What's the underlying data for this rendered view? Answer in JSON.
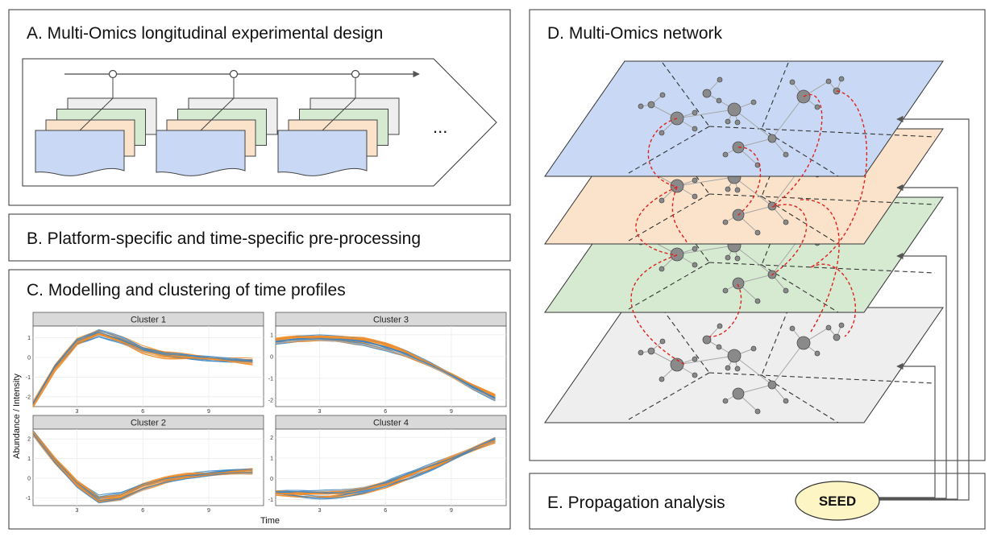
{
  "panels": {
    "a": {
      "title": "A. Multi-Omics longitudinal experimental design",
      "ellipsis": "..."
    },
    "b": {
      "title": "B. Platform-specific and time-specific pre-processing"
    },
    "c": {
      "title": "C. Modelling and clustering of time profiles"
    },
    "d": {
      "title": "D. Multi-Omics network"
    },
    "e": {
      "title": "E. Propagation analysis",
      "seed_label": "SEED"
    }
  },
  "chart_data": {
    "type": "line",
    "xlabel": "Time",
    "ylabel": "Abundance / Intensity",
    "x_ticks": [
      3,
      6,
      9
    ],
    "xlim": [
      1,
      11.5
    ],
    "series_colors": {
      "orange": "#f28e2b",
      "blue": "#3a85c4",
      "grey": "#b5b5b5"
    },
    "facets": [
      {
        "name": "Cluster 1",
        "ylim": [
          -2.5,
          1.6
        ],
        "y_ticks": [
          -2,
          -1,
          0,
          1
        ],
        "profile_x": [
          1,
          2,
          3,
          4,
          5,
          6,
          7,
          8,
          9,
          10,
          11
        ],
        "profile_y": [
          -2.4,
          -0.5,
          0.8,
          1.25,
          0.9,
          0.4,
          0.15,
          0.05,
          -0.05,
          -0.15,
          -0.2
        ]
      },
      {
        "name": "Cluster 3",
        "ylim": [
          -2.3,
          1.4
        ],
        "y_ticks": [
          -2,
          -1,
          0,
          1
        ],
        "profile_x": [
          1,
          2,
          3,
          4,
          5,
          6,
          7,
          8,
          9,
          10,
          11
        ],
        "profile_y": [
          0.7,
          0.8,
          0.85,
          0.8,
          0.7,
          0.45,
          0.1,
          -0.35,
          -0.85,
          -1.4,
          -1.9
        ]
      },
      {
        "name": "Cluster 2",
        "ylim": [
          -1.4,
          2.5
        ],
        "y_ticks": [
          -1,
          0,
          1,
          2
        ],
        "profile_x": [
          1,
          2,
          3,
          4,
          5,
          6,
          7,
          8,
          9,
          10,
          11
        ],
        "profile_y": [
          2.3,
          0.9,
          -0.3,
          -1.1,
          -0.95,
          -0.45,
          -0.1,
          0.1,
          0.2,
          0.3,
          0.35
        ]
      },
      {
        "name": "Cluster 4",
        "ylim": [
          -1.3,
          2.4
        ],
        "y_ticks": [
          -1,
          0,
          1,
          2
        ],
        "profile_x": [
          1,
          2,
          3,
          4,
          5,
          6,
          7,
          8,
          9,
          10,
          11
        ],
        "profile_y": [
          -0.7,
          -0.75,
          -0.75,
          -0.7,
          -0.55,
          -0.3,
          0.1,
          0.55,
          1.0,
          1.45,
          1.85
        ]
      }
    ]
  },
  "colors": {
    "layer_blue": "#c9d9f5",
    "layer_orange": "#fbe3cb",
    "layer_green": "#d6ead2",
    "layer_grey": "#eeeeee",
    "node_fill": "#8a8a8a",
    "propagation_edge": "#e0211c",
    "seed_fill": "#fdf5c4"
  }
}
